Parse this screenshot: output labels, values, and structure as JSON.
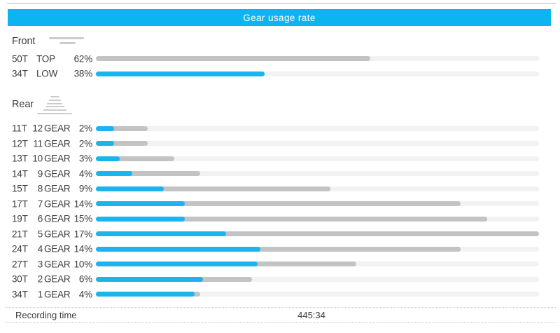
{
  "header": {
    "title": "Gear usage rate"
  },
  "colors": {
    "accent": "#0db5f0",
    "bar_blue": "#1cb4ef",
    "bar_gray": "#c3c3c3",
    "bar_track": "#f2f2f2",
    "icon_gray": "#cccccc",
    "text": "#3d3d3d",
    "title_text": "#ffffff"
  },
  "icons": {
    "front": "front-chainrings-icon (two stacked horizontal lines)",
    "rear": "rear-cassette-icon (pyramid of six horizontal lines)"
  },
  "footer": {
    "label": "Recording time",
    "value": "445:34"
  },
  "chart_data": {
    "type": "bar",
    "orientation": "horizontal",
    "title": "Gear usage rate",
    "segments": {
      "blue": "share used with front LOW",
      "gray": "share used with front TOP"
    },
    "groups": [
      {
        "name": "Front",
        "axis_max_pct": 100,
        "rows": [
          {
            "teeth": "50T",
            "gear": "TOP",
            "pct": 62,
            "pct_label": "62%",
            "low_pct": 0
          },
          {
            "teeth": "34T",
            "gear": "LOW",
            "pct": 38,
            "pct_label": "38%",
            "low_pct": 38
          }
        ]
      },
      {
        "name": "Rear",
        "axis_max_pct": 17,
        "gear_word": "GEAR",
        "rows": [
          {
            "teeth": "11T",
            "gear": "12",
            "pct": 2,
            "pct_label": "2%",
            "low_pct": 0.7
          },
          {
            "teeth": "12T",
            "gear": "11",
            "pct": 2,
            "pct_label": "2%",
            "low_pct": 0.7
          },
          {
            "teeth": "13T",
            "gear": "10",
            "pct": 3,
            "pct_label": "3%",
            "low_pct": 0.9
          },
          {
            "teeth": "14T",
            "gear": "9",
            "pct": 4,
            "pct_label": "4%",
            "low_pct": 1.4
          },
          {
            "teeth": "15T",
            "gear": "8",
            "pct": 9,
            "pct_label": "9%",
            "low_pct": 2.6
          },
          {
            "teeth": "17T",
            "gear": "7",
            "pct": 14,
            "pct_label": "14%",
            "low_pct": 3.4
          },
          {
            "teeth": "19T",
            "gear": "6",
            "pct": 15,
            "pct_label": "15%",
            "low_pct": 3.4
          },
          {
            "teeth": "21T",
            "gear": "5",
            "pct": 17,
            "pct_label": "17%",
            "low_pct": 5.0
          },
          {
            "teeth": "24T",
            "gear": "4",
            "pct": 14,
            "pct_label": "14%",
            "low_pct": 6.3
          },
          {
            "teeth": "27T",
            "gear": "3",
            "pct": 10,
            "pct_label": "10%",
            "low_pct": 6.2
          },
          {
            "teeth": "30T",
            "gear": "2",
            "pct": 6,
            "pct_label": "6%",
            "low_pct": 4.1
          },
          {
            "teeth": "34T",
            "gear": "1",
            "pct": 4,
            "pct_label": "4%",
            "low_pct": 3.8
          }
        ]
      }
    ]
  }
}
